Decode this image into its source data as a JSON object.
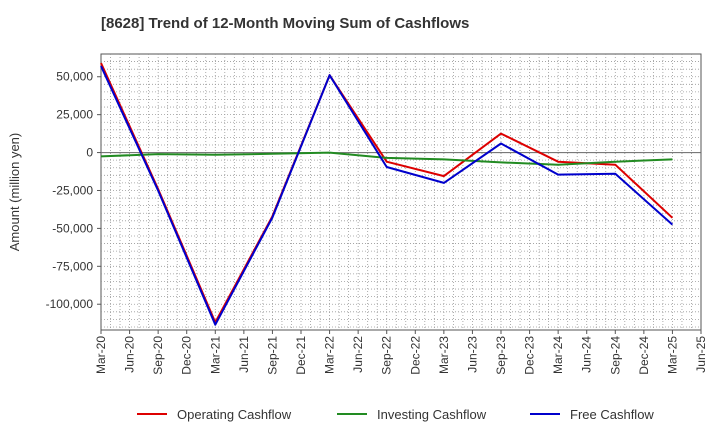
{
  "chart_data": {
    "type": "line",
    "title": "[8628]  Trend of 12-Month Moving Sum of Cashflows",
    "ylabel": "Amount (million yen)",
    "xlabel": "",
    "x": [
      "Mar-20",
      "Jun-20",
      "Sep-20",
      "Dec-20",
      "Mar-21",
      "Jun-21",
      "Sep-21",
      "Dec-21",
      "Mar-22",
      "Jun-22",
      "Sep-22",
      "Dec-22",
      "Mar-23",
      "Jun-23",
      "Sep-23",
      "Dec-23",
      "Mar-24",
      "Jun-24",
      "Sep-24",
      "Dec-24",
      "Mar-25",
      "Jun-25"
    ],
    "y_ticks": [
      50000,
      25000,
      0,
      -25000,
      -50000,
      -75000,
      -100000
    ],
    "y_tick_labels": [
      "50,000",
      "25,000",
      "0",
      "-25,000",
      "-50,000",
      "-75,000",
      "-100,000"
    ],
    "ylim": [
      -117000,
      65000
    ],
    "grid": true,
    "legend_position": "bottom",
    "series": [
      {
        "name": "Operating Cashflow",
        "color": "#dd0000",
        "values": [
          59000,
          null,
          -24000,
          null,
          -112000,
          null,
          -42000,
          null,
          51000,
          null,
          -6000,
          null,
          -15500,
          null,
          12500,
          null,
          -6000,
          null,
          -8000,
          null,
          -43000,
          null
        ]
      },
      {
        "name": "Investing Cashflow",
        "color": "#228b22",
        "values": [
          -2500,
          null,
          -1000,
          null,
          -1500,
          null,
          -800,
          null,
          0,
          null,
          -3500,
          null,
          -4500,
          null,
          -6500,
          null,
          -8000,
          null,
          -6000,
          null,
          -4500,
          null
        ]
      },
      {
        "name": "Free Cashflow",
        "color": "#0000cc",
        "values": [
          57000,
          null,
          -25000,
          null,
          -113500,
          null,
          -42800,
          null,
          51000,
          null,
          -9500,
          null,
          -20000,
          null,
          6000,
          null,
          -14500,
          null,
          -14000,
          null,
          -47500,
          null
        ]
      }
    ]
  }
}
